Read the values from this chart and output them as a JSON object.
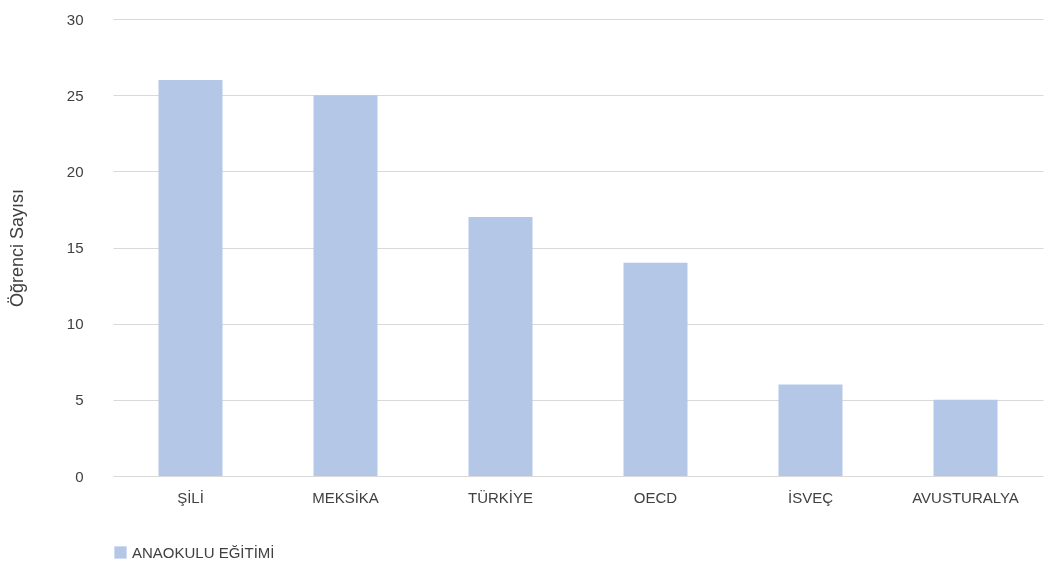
{
  "chart_data": {
    "type": "bar",
    "ylabel": "Öğrenci Sayısı",
    "categories": [
      "ŞİLİ",
      "MEKSİKA",
      "TÜRKİYE",
      "OECD",
      "İSVEÇ",
      "AVUSTURALYA"
    ],
    "series": [
      {
        "name": "ANAOKULU EĞİTİMİ",
        "color": "#b4c7e7",
        "values": [
          26,
          25,
          17,
          14,
          6,
          5
        ]
      }
    ],
    "ylim": [
      0,
      30
    ],
    "yticks": [
      0,
      5,
      10,
      15,
      20,
      25,
      30
    ],
    "grid": "y",
    "legend": "bottom"
  }
}
